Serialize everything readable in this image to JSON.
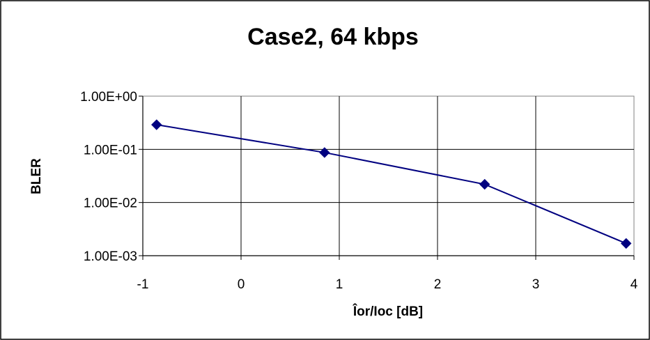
{
  "chart_data": {
    "type": "line",
    "title": "Case2, 64 kbps",
    "xlabel": "Îor/Ioc [dB]",
    "ylabel": "BLER",
    "xlim": [
      -1,
      4
    ],
    "ylim": [
      0.001,
      1
    ],
    "yscale": "log",
    "grid": true,
    "legend": "none",
    "x_ticks": [
      "-1",
      "0",
      "1",
      "2",
      "3",
      "4"
    ],
    "y_ticks": [
      "1.00E+00",
      "1.00E-01",
      "1.00E-02",
      "1.00E-03"
    ],
    "series": [
      {
        "x": [
          -0.86,
          0.85,
          2.48,
          3.92
        ],
        "y": [
          0.29,
          0.087,
          0.022,
          0.0017
        ],
        "color": "#000080",
        "marker": "diamond"
      }
    ]
  }
}
